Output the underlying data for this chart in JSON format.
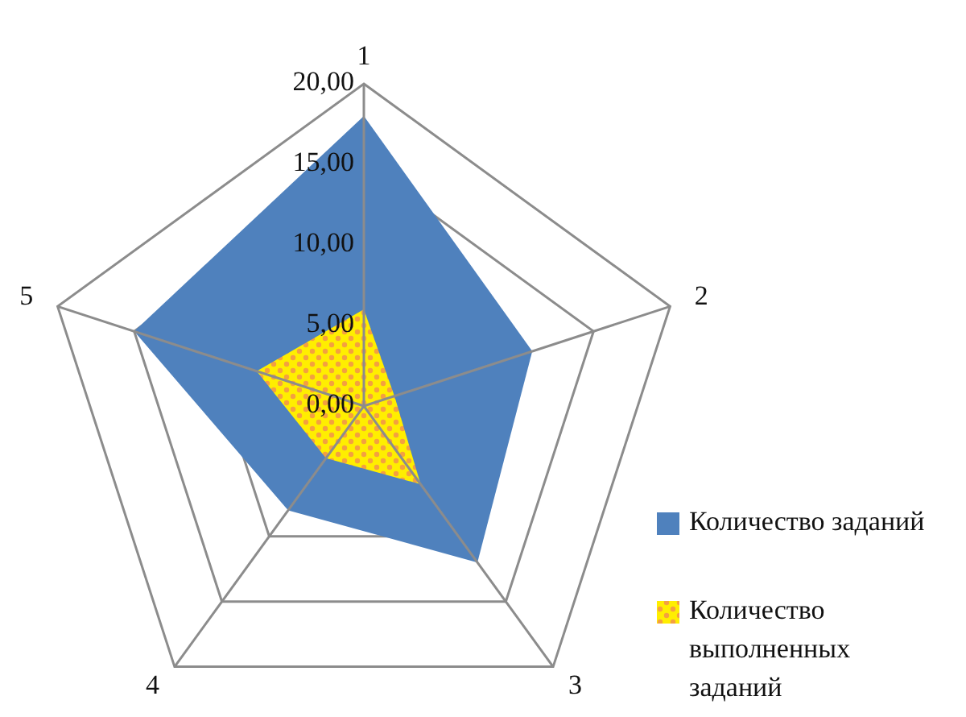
{
  "chart_data": {
    "type": "radar",
    "categories": [
      "1",
      "2",
      "3",
      "4",
      "5"
    ],
    "series": [
      {
        "name": "Количество заданий",
        "color": "#4f81bd",
        "values": [
          18,
          11,
          12,
          8,
          15
        ]
      },
      {
        "name": "Количество выполненных заданий",
        "color": "#ffee00",
        "values": [
          6,
          2,
          6,
          4,
          7
        ]
      }
    ],
    "ylim": [
      0,
      20
    ],
    "yticks": [
      {
        "value": 0,
        "label": "0,00"
      },
      {
        "value": 5,
        "label": "5,00"
      },
      {
        "value": 10,
        "label": "10,00"
      },
      {
        "value": 15,
        "label": "15,00"
      },
      {
        "value": 20,
        "label": "20,00"
      }
    ],
    "grid": true,
    "legend": "right"
  }
}
